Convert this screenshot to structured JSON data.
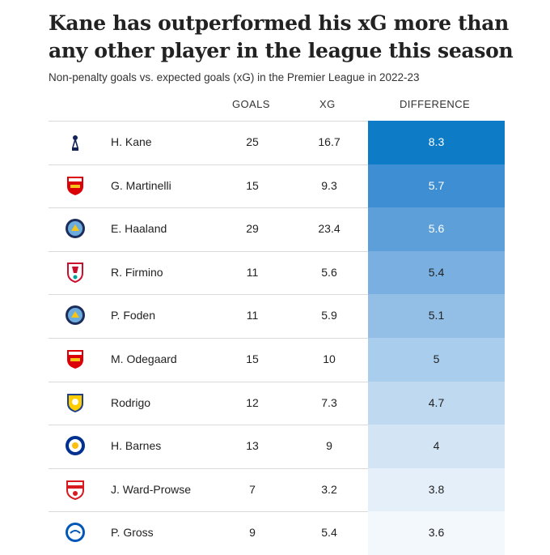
{
  "title": "Kane has outperformed his xG more than any other player in the league this season",
  "subtitle": "Non-penalty goals vs. expected goals (xG) in the Premier League in 2022-23",
  "chart_data": {
    "type": "table",
    "title": "Kane has outperformed his xG more than any other player in the league this season",
    "subtitle": "Non-penalty goals vs. expected goals (xG) in the Premier League in 2022-23",
    "columns": [
      "GOALS",
      "XG",
      "DIFFERENCE"
    ],
    "rows": [
      {
        "club": "tottenham-crest",
        "player": "H. Kane",
        "goals": "25",
        "xg": "16.7",
        "difference": "8.3",
        "diff_value": 8.3,
        "color": "#0d7bc6",
        "text_color": "#ffffff"
      },
      {
        "club": "arsenal-crest",
        "player": "G. Martinelli",
        "goals": "15",
        "xg": "9.3",
        "difference": "5.7",
        "diff_value": 5.7,
        "color": "#3e8ed3",
        "text_color": "#ffffff"
      },
      {
        "club": "man-city-crest",
        "player": "E. Haaland",
        "goals": "29",
        "xg": "23.4",
        "difference": "5.6",
        "diff_value": 5.6,
        "color": "#5c9fd9",
        "text_color": "#ffffff"
      },
      {
        "club": "liverpool-crest",
        "player": "R. Firmino",
        "goals": "11",
        "xg": "5.6",
        "difference": "5.4",
        "diff_value": 5.4,
        "color": "#79b0e1",
        "text_color": "#222222"
      },
      {
        "club": "man-city-crest",
        "player": "P. Foden",
        "goals": "11",
        "xg": "5.9",
        "difference": "5.1",
        "diff_value": 5.1,
        "color": "#93bfe7",
        "text_color": "#222222"
      },
      {
        "club": "arsenal-crest",
        "player": "M. Odegaard",
        "goals": "15",
        "xg": "10",
        "difference": "5",
        "diff_value": 5,
        "color": "#a9cdec",
        "text_color": "#222222"
      },
      {
        "club": "leeds-crest",
        "player": "Rodrigo",
        "goals": "12",
        "xg": "7.3",
        "difference": "4.7",
        "diff_value": 4.7,
        "color": "#bed9f0",
        "text_color": "#222222"
      },
      {
        "club": "leicester-crest",
        "player": "H. Barnes",
        "goals": "13",
        "xg": "9",
        "difference": "4",
        "diff_value": 4,
        "color": "#d3e5f5",
        "text_color": "#222222"
      },
      {
        "club": "southampton-crest",
        "player": "J. Ward-Prowse",
        "goals": "7",
        "xg": "3.2",
        "difference": "3.8",
        "diff_value": 3.8,
        "color": "#e5eff9",
        "text_color": "#222222"
      },
      {
        "club": "brighton-crest",
        "player": "P. Gross",
        "goals": "9",
        "xg": "5.4",
        "difference": "3.6",
        "diff_value": 3.6,
        "color": "#f3f8fd",
        "text_color": "#222222"
      }
    ]
  }
}
